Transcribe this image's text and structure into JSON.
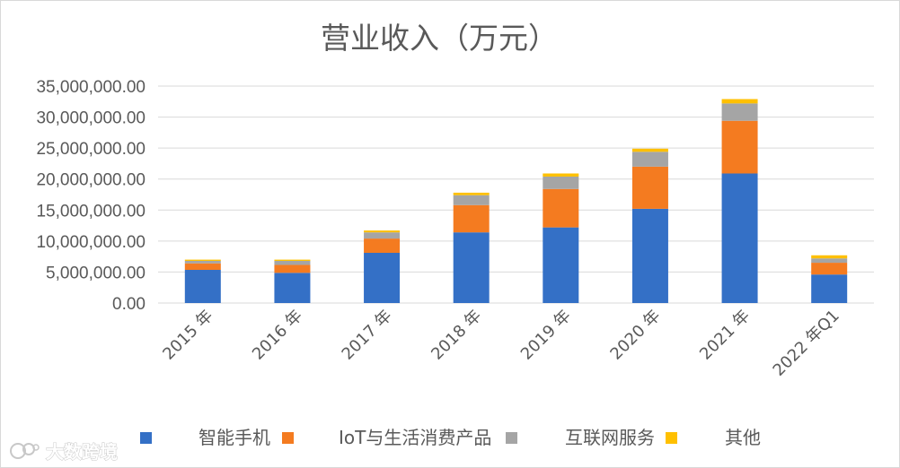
{
  "chart_data": {
    "type": "bar",
    "stacked": true,
    "title": "营业收入（万元）",
    "categories": [
      "2015 年",
      "2016 年",
      "2017 年",
      "2018 年",
      "2019 年",
      "2020 年",
      "2021 年",
      "2022 年Q1"
    ],
    "series": [
      {
        "name": "智能手机",
        "color": "#3470c6",
        "values": [
          5350000,
          4870000,
          8100000,
          11400000,
          12200000,
          15200000,
          20900000,
          4600000
        ]
      },
      {
        "name": "IoT与生活消费产品",
        "color": "#f47b20",
        "values": [
          1050000,
          1280000,
          2300000,
          4400000,
          6200000,
          6800000,
          8500000,
          1900000
        ]
      },
      {
        "name": "互联网服务",
        "color": "#a5a5a5",
        "values": [
          400000,
          650000,
          1000000,
          1600000,
          2000000,
          2400000,
          2800000,
          700000
        ]
      },
      {
        "name": "其他",
        "color": "#ffc000",
        "values": [
          200000,
          200000,
          300000,
          400000,
          500000,
          500000,
          700000,
          500000
        ]
      }
    ],
    "yticks": [
      "0.00",
      "5,000,000.00",
      "10,000,000.00",
      "15,000,000.00",
      "20,000,000.00",
      "25,000,000.00",
      "30,000,000.00",
      "35,000,000.00"
    ],
    "ylim": [
      0,
      35000000
    ],
    "grid": true,
    "legend_position": "bottom"
  },
  "watermark": {
    "text": "大数跨境"
  }
}
